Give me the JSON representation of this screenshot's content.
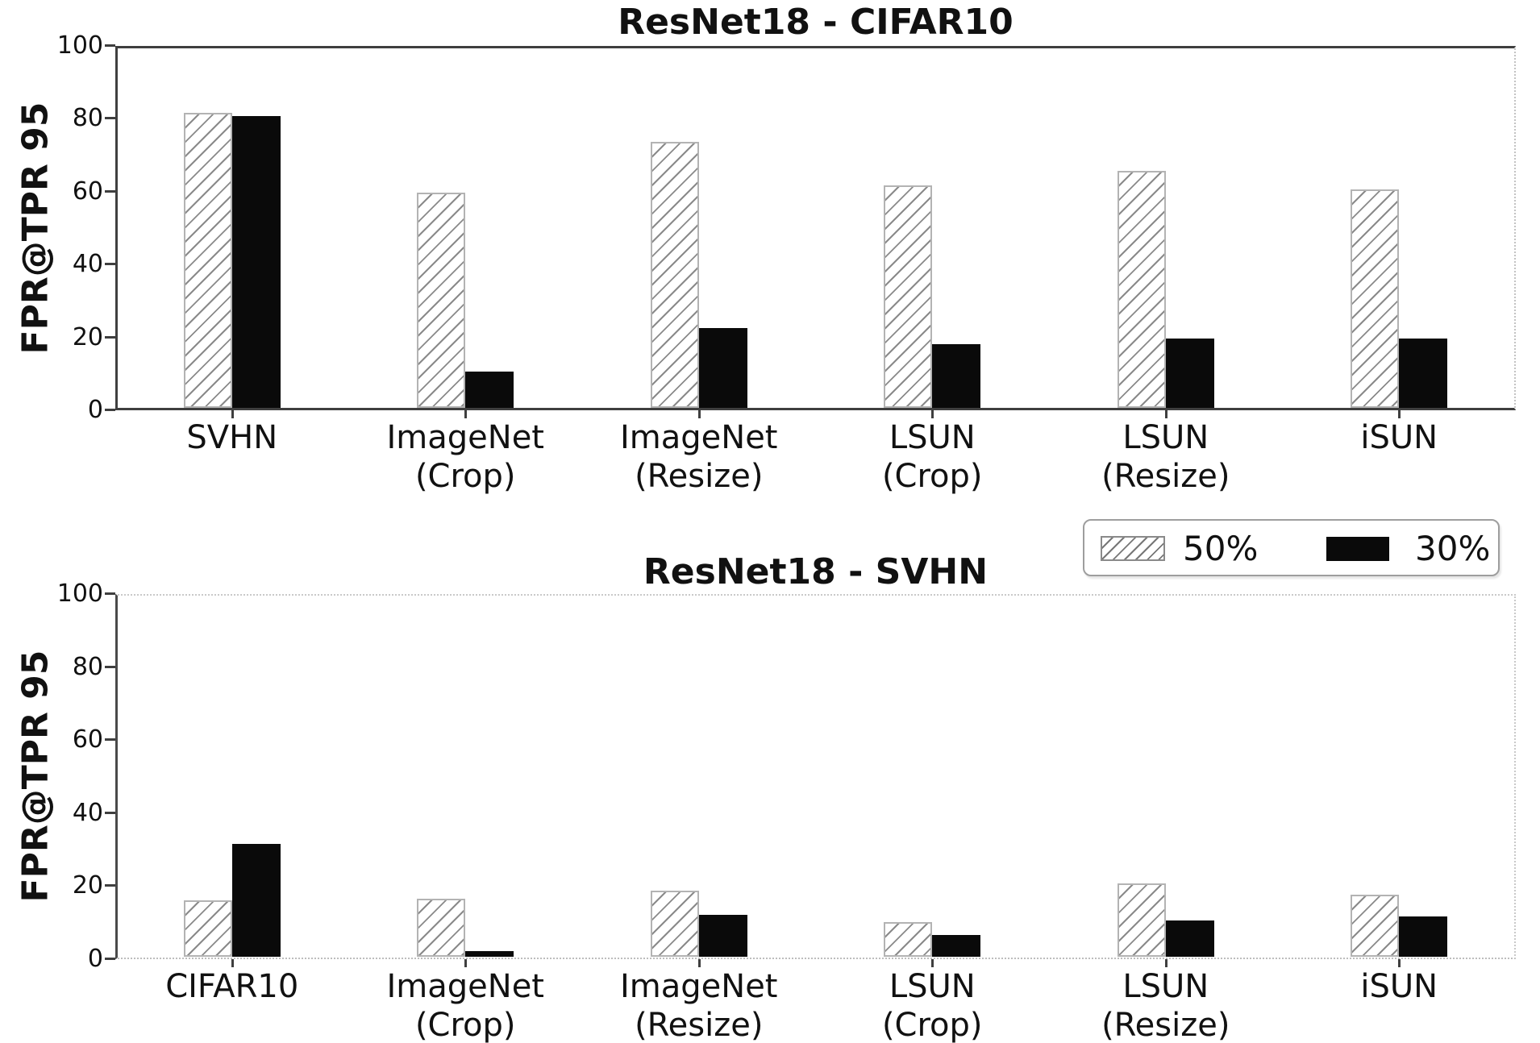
{
  "figure": {
    "ylabel": "FPR@TPR 95"
  },
  "legend": {
    "items": [
      {
        "label": "50%",
        "swatch": "hatched"
      },
      {
        "label": "30%",
        "swatch": "solid-black"
      }
    ]
  },
  "chart_data": [
    {
      "type": "bar",
      "title": "ResNet18 - CIFAR10",
      "ylabel": "FPR@TPR 95",
      "xlabel": "",
      "ylim": [
        0,
        100
      ],
      "yticks": [
        0,
        20,
        40,
        60,
        80,
        100
      ],
      "grid": false,
      "legend_position": "below-right-of-plot (shared)",
      "categories": [
        [
          "SVHN"
        ],
        [
          "ImageNet",
          "(Crop)"
        ],
        [
          "ImageNet",
          "(Resize)"
        ],
        [
          "LSUN",
          "(Crop)"
        ],
        [
          "LSUN",
          "(Resize)"
        ],
        [
          "iSUN"
        ]
      ],
      "series": [
        {
          "name": "50%",
          "style": "hatched",
          "values": [
            81,
            59,
            73,
            61,
            65,
            60
          ]
        },
        {
          "name": "30%",
          "style": "solid-black",
          "values": [
            80,
            10,
            22,
            17.5,
            19,
            19
          ]
        }
      ]
    },
    {
      "type": "bar",
      "title": "ResNet18 - SVHN",
      "ylabel": "FPR@TPR 95",
      "xlabel": "",
      "ylim": [
        0,
        100
      ],
      "yticks": [
        0,
        20,
        40,
        60,
        80,
        100
      ],
      "grid": false,
      "legend_position": "shared",
      "categories": [
        [
          "CIFAR10"
        ],
        [
          "ImageNet",
          "(Crop)"
        ],
        [
          "ImageNet",
          "(Resize)"
        ],
        [
          "LSUN",
          "(Crop)"
        ],
        [
          "LSUN",
          "(Resize)"
        ],
        [
          "iSUN"
        ]
      ],
      "series": [
        {
          "name": "50%",
          "style": "hatched",
          "values": [
            15.5,
            16,
            18,
            9.5,
            20,
            17
          ]
        },
        {
          "name": "30%",
          "style": "solid-black",
          "values": [
            31,
            1.5,
            11.5,
            6,
            10,
            11
          ]
        }
      ]
    }
  ]
}
